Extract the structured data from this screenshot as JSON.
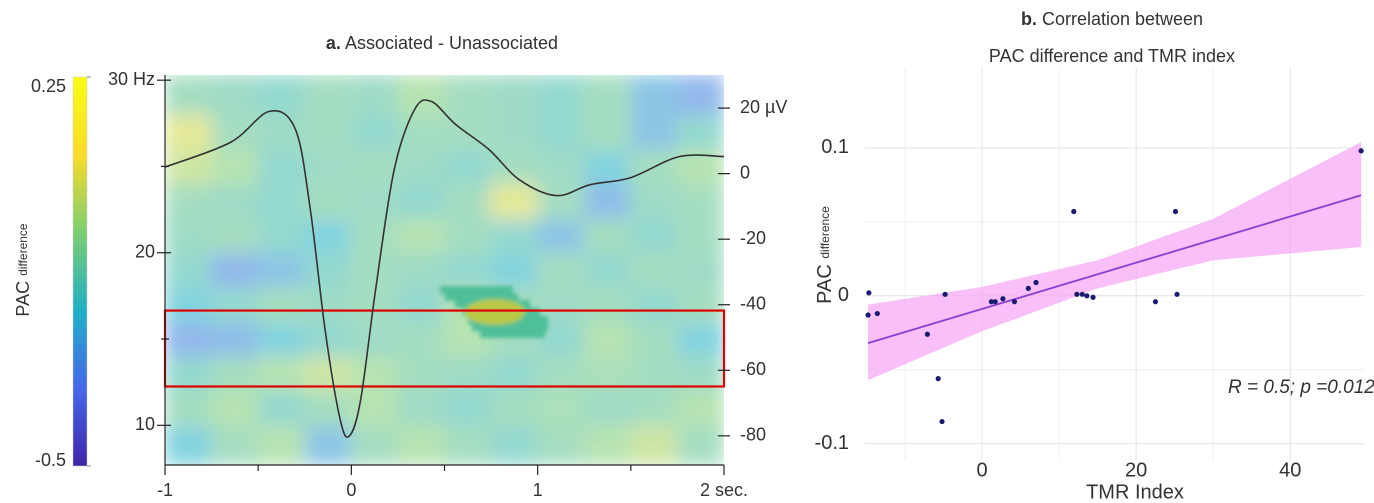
{
  "chart_data": [
    {
      "type": "heatmap",
      "panel_label": "a.",
      "title": "Associated - Unassociated",
      "xlim": [
        -1,
        2
      ],
      "xticks": [
        -1,
        0,
        1,
        {
          "value": 2,
          "label": "2 sec."
        }
      ],
      "xminorticks": [
        -0.5,
        0.5,
        1.5
      ],
      "ylim": [
        7.7,
        30.3
      ],
      "yticks": [
        {
          "value": 30,
          "label": "30 Hz"
        },
        20,
        10
      ],
      "yminorticks": [
        15,
        25
      ],
      "y2lim": [
        -88.9,
        30.1
      ],
      "y2ticks": [
        {
          "value": 20,
          "label": "20 µV"
        },
        0,
        -20,
        -40,
        -60,
        -80
      ],
      "colorbar": {
        "range": [
          -0.5,
          0.25
        ],
        "ticks": [
          0.25,
          -0.5
        ],
        "label": "PAC",
        "label_sub": "difference",
        "colormap": [
          "#3e26a8",
          "#4867ea",
          "#1fb0c4",
          "#7ccd73",
          "#fadc2a",
          "#f9fb15"
        ]
      },
      "heatmap": {
        "xbins": [
          -1,
          -0.75,
          -0.5,
          -0.25,
          0,
          0.25,
          0.5,
          0.75,
          1,
          1.25,
          1.5,
          1.75,
          2
        ],
        "ybins": [
          7.7,
          10,
          12,
          14,
          16,
          18,
          20,
          22,
          24,
          26,
          28,
          30.3
        ],
        "z": [
          [
            -0.2,
            -0.1,
            -0.05,
            -0.25,
            -0.1,
            -0.05,
            -0.1,
            -0.15,
            -0.1,
            -0.05,
            0.0,
            -0.1
          ],
          [
            -0.1,
            -0.05,
            -0.15,
            -0.1,
            -0.05,
            -0.12,
            -0.15,
            -0.1,
            -0.08,
            -0.12,
            -0.1,
            -0.05
          ],
          [
            -0.15,
            -0.1,
            -0.05,
            0.0,
            -0.05,
            -0.1,
            -0.12,
            -0.15,
            -0.1,
            -0.08,
            -0.1,
            -0.12
          ],
          [
            -0.3,
            -0.28,
            -0.2,
            -0.15,
            -0.12,
            -0.1,
            -0.05,
            -0.1,
            -0.15,
            -0.05,
            -0.1,
            -0.2
          ],
          [
            -0.2,
            -0.15,
            -0.1,
            -0.12,
            -0.1,
            -0.15,
            -0.05,
            -0.1,
            -0.12,
            -0.1,
            -0.15,
            -0.1
          ],
          [
            -0.15,
            -0.3,
            -0.25,
            -0.15,
            -0.1,
            -0.12,
            -0.15,
            -0.2,
            -0.1,
            -0.15,
            -0.1,
            -0.12
          ],
          [
            -0.12,
            -0.1,
            -0.15,
            -0.2,
            -0.1,
            -0.05,
            -0.1,
            -0.15,
            -0.25,
            -0.1,
            -0.15,
            -0.1
          ],
          [
            -0.1,
            -0.12,
            -0.15,
            -0.1,
            -0.12,
            -0.15,
            -0.1,
            0.05,
            -0.1,
            -0.28,
            -0.12,
            -0.1
          ],
          [
            0.0,
            -0.05,
            -0.15,
            -0.12,
            -0.1,
            -0.12,
            -0.15,
            -0.1,
            -0.12,
            -0.2,
            -0.1,
            -0.05
          ],
          [
            0.05,
            -0.1,
            -0.12,
            -0.1,
            -0.15,
            -0.1,
            -0.1,
            -0.12,
            -0.15,
            -0.1,
            -0.25,
            -0.15
          ],
          [
            -0.1,
            -0.12,
            -0.15,
            -0.1,
            -0.12,
            -0.05,
            -0.1,
            -0.12,
            -0.15,
            -0.1,
            -0.25,
            -0.3
          ]
        ]
      },
      "series": [
        {
          "axis": "y2",
          "color": "#333333",
          "x": [
            -1,
            -0.65,
            -0.44,
            -0.3,
            -0.22,
            -0.14,
            -0.06,
            -0.01,
            0.05,
            0.13,
            0.23,
            0.34,
            0.43,
            0.56,
            0.74,
            0.9,
            1.1,
            1.28,
            1.5,
            1.76,
            2
          ],
          "values": [
            2,
            9.5,
            19,
            13.5,
            -11,
            -48,
            -75,
            -80,
            -69,
            -35.5,
            1.2,
            19.6,
            22,
            15,
            7.3,
            -1.8,
            -6.7,
            -3.4,
            -1.2,
            5.2,
            5.2
          ]
        }
      ],
      "highlight": {
        "x": [
          -1,
          2
        ],
        "y": [
          12.25,
          16.65
        ],
        "color": "#e00000"
      }
    },
    {
      "type": "scatter",
      "panel_label": "b.",
      "title": [
        "Correlation between",
        "PAC difference and TMR index"
      ],
      "xlabel": "TMR Index",
      "ylabel": "PAC",
      "ylabel_sub": "difference",
      "annotation": "R = 0.5; p =0.012",
      "xlim": [
        -15.2,
        49.7
      ],
      "xticks": [
        0,
        20,
        40
      ],
      "xminorticks": [
        -10,
        10,
        30
      ],
      "ylim": [
        -0.111,
        0.154
      ],
      "yticks": [
        0.1,
        0,
        -0.1
      ],
      "yminorticks": [
        -0.05,
        0.05
      ],
      "grid": true,
      "x": [
        -14.7,
        -14.8,
        -13.6,
        -7.1,
        -4.8,
        -5.7,
        -5.2,
        1.2,
        1.7,
        2.7,
        4.2,
        6.0,
        7.0,
        11.9,
        12.3,
        13.0,
        13.6,
        14.4,
        22.5,
        25.1,
        25.3,
        49.2
      ],
      "values": [
        0.002,
        -0.013,
        -0.012,
        -0.026,
        0.001,
        -0.056,
        -0.085,
        -0.004,
        -0.004,
        -0.002,
        -0.004,
        0.005,
        0.009,
        0.057,
        0.001,
        0.001,
        0.0,
        -0.001,
        -0.004,
        0.057,
        0.001,
        0.098
      ],
      "color": "#1a1a6e",
      "fit": {
        "x": [
          -14.8,
          49.2
        ],
        "values": [
          -0.032,
          0.068
        ],
        "color": "#8b3fd0"
      },
      "band": {
        "x": [
          -14.8,
          0,
          15,
          30,
          49.2
        ],
        "lower": [
          -0.057,
          -0.024,
          0.005,
          0.024,
          0.033
        ],
        "upper": [
          -0.006,
          0.006,
          0.024,
          0.052,
          0.104
        ],
        "color": "#f5a9f5"
      }
    }
  ]
}
